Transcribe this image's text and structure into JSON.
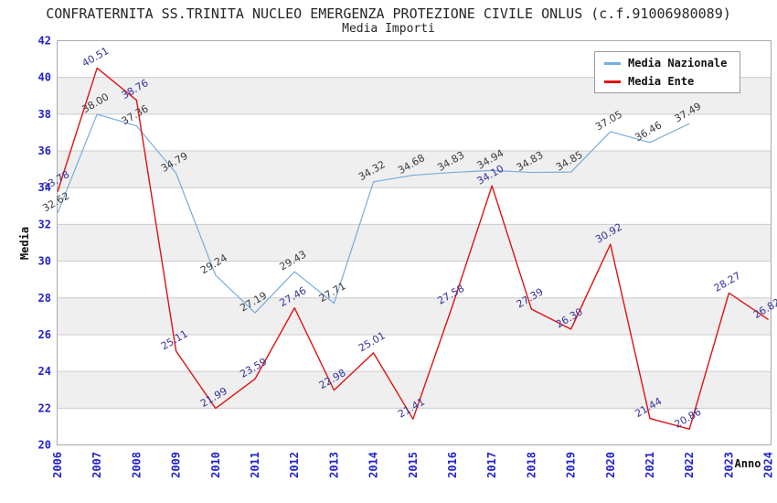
{
  "header": {
    "title": "CONFRATERNITA SS.TRINITA NUCLEO EMERGENZA PROTEZIONE CIVILE ONLUS (c.f.91006980089)",
    "subtitle": "Media Importi"
  },
  "legend": {
    "items": [
      {
        "label": "Media Nazionale",
        "color": "#76acdf"
      },
      {
        "label": "Media Ente",
        "color": "#e01212"
      }
    ]
  },
  "colors": {
    "axis_text": "#2222cc",
    "grid_line": "#cccccc",
    "plot_border": "#aaaaaa",
    "band_gray": "#efefef",
    "band_white": "#ffffff",
    "nazionale_line": "#76acdf",
    "ente_line": "#e01212",
    "nazionale_label_text": "#3a3a3a",
    "ente_label_text": "#32329e",
    "axis_title_text": "#111111"
  },
  "chart_data": {
    "type": "line",
    "title": "Media Importi",
    "xlabel": "Anno",
    "ylabel": "Media",
    "x": [
      "2006",
      "2007",
      "2008",
      "2009",
      "2010",
      "2011",
      "2012",
      "2013",
      "2014",
      "2015",
      "2016",
      "2017",
      "2018",
      "2019",
      "2020",
      "2021",
      "2022",
      "2023",
      "2024"
    ],
    "ylim": [
      20,
      42
    ],
    "ytick_step": 2,
    "grid": true,
    "interlaced_bands": true,
    "legend_position": "top-right",
    "series": [
      {
        "name": "Media Nazionale",
        "values": [
          "32.62",
          "38.00",
          "37.36",
          "34.79",
          "29.24",
          "27.19",
          "29.43",
          "27.71",
          "34.32",
          "34.68",
          "34.83",
          "34.94",
          "34.83",
          "34.85",
          "37.05",
          "36.46",
          "37.49",
          null,
          null
        ]
      },
      {
        "name": "Media Ente",
        "values": [
          "33.78",
          "40.51",
          "38.76",
          "25.11",
          "21.99",
          "23.59",
          "27.46",
          "22.98",
          "25.01",
          "21.41",
          "27.58",
          "34.10",
          "27.39",
          "26.30",
          "30.92",
          "21.44",
          "20.86",
          "28.27",
          "26.82"
        ]
      }
    ]
  }
}
